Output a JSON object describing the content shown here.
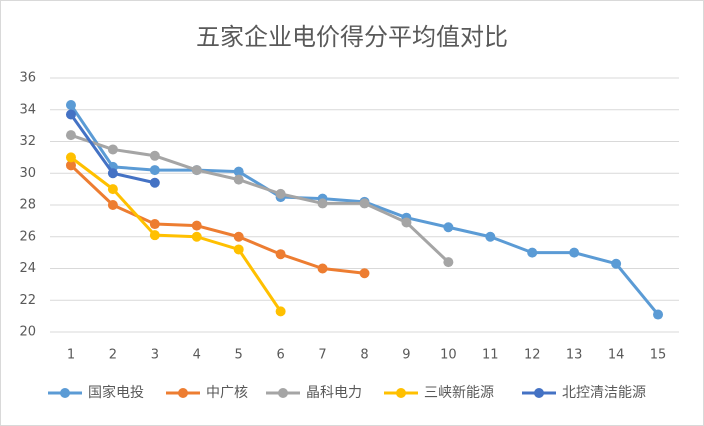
{
  "chart_data": {
    "type": "line",
    "title": "五家企业电价得分平均值对比",
    "categories": [
      "1",
      "2",
      "3",
      "4",
      "5",
      "6",
      "7",
      "8",
      "9",
      "10",
      "11",
      "12",
      "13",
      "14",
      "15"
    ],
    "series": [
      {
        "name": "国家电投",
        "color": "#5b9bd5",
        "values": [
          34.3,
          30.4,
          30.2,
          30.2,
          30.1,
          28.5,
          28.4,
          28.2,
          27.2,
          26.6,
          26.0,
          25.0,
          25.0,
          24.3,
          21.1
        ]
      },
      {
        "name": "中广核",
        "color": "#ed7d31",
        "values": [
          30.5,
          28.0,
          26.8,
          26.7,
          26.0,
          24.9,
          24.0,
          23.7,
          null,
          null,
          null,
          null,
          null,
          null,
          null
        ]
      },
      {
        "name": "晶科电力",
        "color": "#a5a5a5",
        "values": [
          32.4,
          31.5,
          31.1,
          30.2,
          29.6,
          28.7,
          28.1,
          28.1,
          26.9,
          24.4,
          null,
          null,
          null,
          null,
          null
        ]
      },
      {
        "name": "三峡新能源",
        "color": "#ffc000",
        "values": [
          31.0,
          29.0,
          26.1,
          26.0,
          25.2,
          21.3,
          null,
          null,
          null,
          null,
          null,
          null,
          null,
          null,
          null
        ]
      },
      {
        "name": "北控清洁能源",
        "color": "#4472c4",
        "values": [
          33.7,
          30.0,
          29.4,
          null,
          null,
          null,
          null,
          null,
          null,
          null,
          null,
          null,
          null,
          null,
          null
        ]
      }
    ],
    "ylim": [
      20,
      36
    ],
    "yticks": [
      20,
      22,
      24,
      26,
      28,
      30,
      32,
      34,
      36
    ],
    "grid": true,
    "legend": "bottom"
  }
}
